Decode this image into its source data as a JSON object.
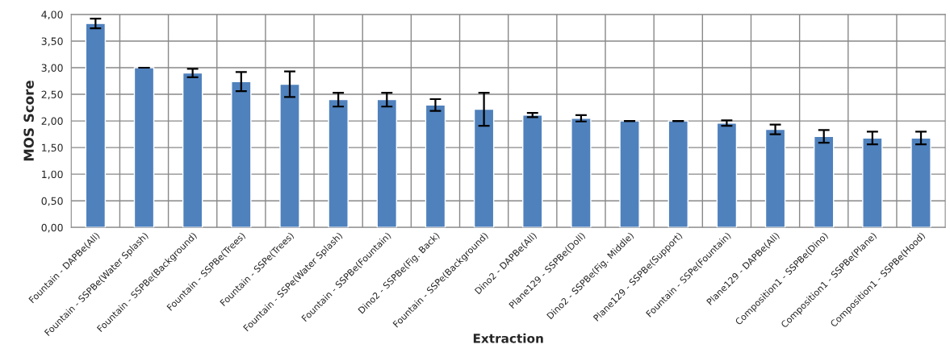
{
  "chart_data": {
    "type": "bar",
    "xlabel": "Extraction",
    "ylabel": "MOS Score",
    "categories": [
      "Fountain - DAPBe(All)",
      "Fountain - SSPBe(Water Splash)",
      "Fountain - SSPBe(Background)",
      "Fountain - SSPBe(Trees)",
      "Fountain - SSPe(Trees)",
      "Fountain - SSPe(Water Splash)",
      "Fountain - SSPBe(Fountain)",
      "Dino2 - SSPBe(Fig. Back)",
      "Fountain - SSPe(Background)",
      "Dino2 - DAPBe(All)",
      "Plane129 - SSPBe(Doll)",
      "Dino2 - SSPBe(Fig. Middle)",
      "Plane129 - SSPBe(Support)",
      "Fountain - SSPe(Fountain)",
      "Plane129 - DAPBe(All)",
      "Composition1 - SSPBe(Dino)",
      "Composition1 - SSPBe(Plane)",
      "Composition1 - SSPBe(Hood)"
    ],
    "values": [
      3.83,
      3.0,
      2.9,
      2.74,
      2.69,
      2.4,
      2.4,
      2.3,
      2.22,
      2.11,
      2.05,
      2.0,
      2.0,
      1.96,
      1.84,
      1.71,
      1.68,
      1.68
    ],
    "errors": [
      0.09,
      0,
      0.08,
      0.18,
      0.24,
      0.13,
      0.13,
      0.11,
      0.31,
      0.04,
      0.06,
      0,
      0,
      0.05,
      0.09,
      0.12,
      0.12,
      0.12
    ],
    "color": "#4f81bd",
    "ylim": [
      0,
      4
    ],
    "yticks": [
      {
        "value": 0,
        "label": "0,00"
      },
      {
        "value": 0.5,
        "label": "0,50"
      },
      {
        "value": 1,
        "label": "1,00"
      },
      {
        "value": 1.5,
        "label": "1,50"
      },
      {
        "value": 2,
        "label": "2,00"
      },
      {
        "value": 2.5,
        "label": "2,50"
      },
      {
        "value": 3,
        "label": "3,00"
      },
      {
        "value": 3.5,
        "label": "3,50"
      },
      {
        "value": 4,
        "label": "4,00"
      }
    ],
    "grid": true
  }
}
